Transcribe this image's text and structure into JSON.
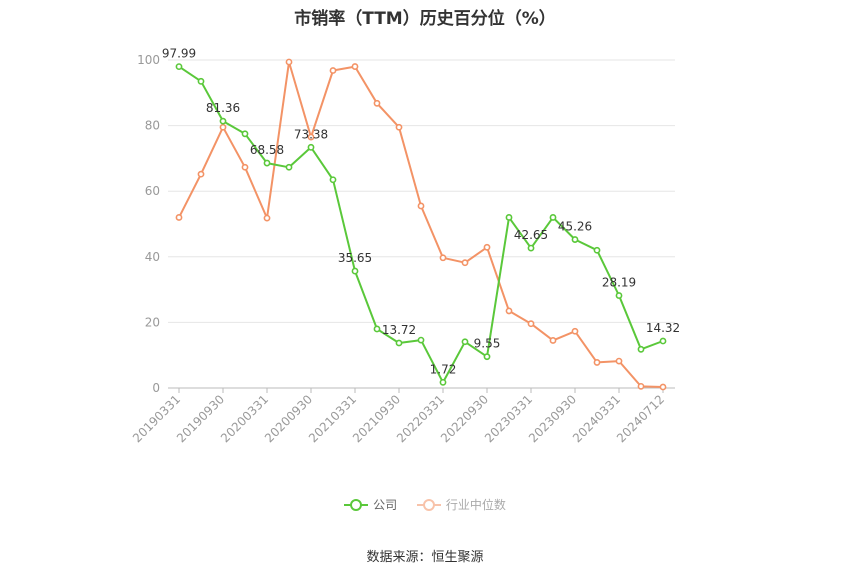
{
  "chart_data": {
    "type": "line",
    "title": "市销率（TTM）历史百分位（%）",
    "x": [
      "20190331",
      "20190630",
      "20190930",
      "20191231",
      "20200331",
      "20200630",
      "20200930",
      "20201231",
      "20210331",
      "20210630",
      "20210930",
      "20211231",
      "20220331",
      "20220630",
      "20220930",
      "20221231",
      "20230331",
      "20230630",
      "20230930",
      "20231231",
      "20240331",
      "20240630",
      "20240712"
    ],
    "x_tick_labels": [
      "20190331",
      "20190930",
      "20200331",
      "20200930",
      "20210331",
      "20210930",
      "20220331",
      "20220930",
      "20230331",
      "20230930",
      "20240331",
      "20240712"
    ],
    "y_ticks": [
      0,
      20,
      40,
      60,
      80,
      100
    ],
    "ylim": [
      0,
      100
    ],
    "grid": true,
    "series": [
      {
        "name": "公司",
        "color": "#5ac83a",
        "values": [
          97.99,
          93.5,
          81.36,
          77.5,
          68.58,
          67.3,
          73.38,
          63.5,
          35.65,
          18.0,
          13.72,
          14.6,
          1.72,
          14.1,
          9.55,
          52.0,
          42.65,
          52.0,
          45.26,
          42.0,
          28.19,
          11.8,
          14.32
        ],
        "labels": [
          "97.99",
          "",
          "81.36",
          "",
          "68.58",
          "",
          "73.38",
          "",
          "35.65",
          "",
          "13.72",
          "",
          "1.72",
          "",
          "9.55",
          "",
          "42.65",
          "",
          "45.26",
          "",
          "28.19",
          "",
          "14.32"
        ]
      },
      {
        "name": "行业中位数",
        "color": "#f39366",
        "values": [
          52.0,
          65.2,
          79.5,
          67.3,
          51.8,
          99.4,
          76.5,
          96.8,
          98.0,
          86.8,
          79.5,
          55.5,
          39.7,
          38.2,
          42.9,
          23.5,
          19.6,
          14.5,
          17.3,
          7.8,
          8.2,
          0.5,
          0.3
        ]
      }
    ]
  },
  "legend": {
    "company": "公司",
    "industry": "行业中位数",
    "company_color": "#5ac83a",
    "industry_color": "#f39366"
  },
  "source": "数据来源：恒生聚源"
}
